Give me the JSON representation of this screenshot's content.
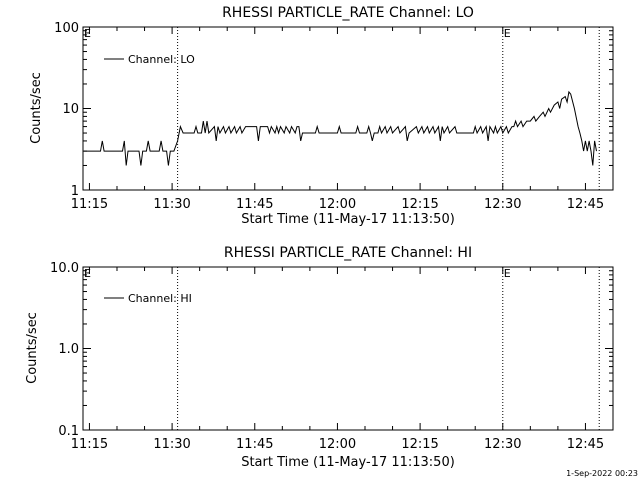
{
  "figure": {
    "footer_timestamp": "1-Sep-2022 00:23"
  },
  "chart_data": [
    {
      "type": "line",
      "title": "RHESSI PARTICLE_RATE Channel: LO",
      "xlabel": "Start Time (11-May-17 11:13:50)",
      "ylabel": "Counts/sec",
      "y_scale": "log",
      "xlim": [
        "11:13:50",
        "12:50:00"
      ],
      "ylim": [
        1,
        100
      ],
      "x_ticks": [
        "11:15",
        "11:30",
        "11:45",
        "12:00",
        "12:15",
        "12:30",
        "12:45"
      ],
      "y_ticks": [
        "1",
        "10",
        "100"
      ],
      "legend": "top-left",
      "vertical_markers": [
        {
          "time": "11:31:00",
          "label": ""
        },
        {
          "time": "12:30:00",
          "label": "E"
        },
        {
          "time": "12:47:30",
          "label": ""
        }
      ],
      "corner_label": "E",
      "series": [
        {
          "name": "Channel: LO",
          "color": "#000000",
          "points": [
            [
              "11:14:00",
              3.0
            ],
            [
              "11:17:00",
              3.0
            ],
            [
              "11:17:20",
              4.0
            ],
            [
              "11:17:40",
              3.0
            ],
            [
              "11:21:00",
              3.0
            ],
            [
              "11:21:20",
              4.0
            ],
            [
              "11:21:40",
              2.0
            ],
            [
              "11:22:00",
              3.0
            ],
            [
              "11:24:00",
              3.0
            ],
            [
              "11:24:20",
              2.0
            ],
            [
              "11:24:40",
              3.0
            ],
            [
              "11:25:20",
              3.0
            ],
            [
              "11:25:40",
              4.0
            ],
            [
              "11:26:00",
              3.0
            ],
            [
              "11:27:40",
              3.0
            ],
            [
              "11:28:00",
              4.0
            ],
            [
              "11:28:20",
              3.0
            ],
            [
              "11:29:00",
              3.0
            ],
            [
              "11:29:20",
              2.0
            ],
            [
              "11:29:40",
              3.0
            ],
            [
              "11:30:20",
              3.0
            ],
            [
              "11:31:00",
              4.0
            ],
            [
              "11:31:30",
              6.0
            ],
            [
              "11:32:00",
              5.0
            ],
            [
              "11:34:00",
              5.0
            ],
            [
              "11:34:20",
              6.0
            ],
            [
              "11:34:40",
              5.0
            ],
            [
              "11:35:20",
              5.0
            ],
            [
              "11:35:40",
              7.0
            ],
            [
              "11:36:00",
              5.0
            ],
            [
              "11:36:20",
              7.0
            ],
            [
              "11:36:40",
              5.0
            ],
            [
              "11:37:40",
              6.0
            ],
            [
              "11:38:00",
              4.0
            ],
            [
              "11:38:20",
              6.0
            ],
            [
              "11:38:40",
              5.0
            ],
            [
              "11:39:20",
              6.0
            ],
            [
              "11:39:40",
              5.0
            ],
            [
              "11:40:20",
              6.0
            ],
            [
              "11:40:40",
              5.0
            ],
            [
              "11:41:20",
              6.0
            ],
            [
              "11:41:40",
              5.0
            ],
            [
              "11:42:20",
              6.0
            ],
            [
              "11:42:40",
              5.0
            ],
            [
              "11:43:20",
              6.0
            ],
            [
              "11:43:40",
              6.0
            ],
            [
              "11:45:20",
              6.0
            ],
            [
              "11:45:40",
              4.0
            ],
            [
              "11:46:00",
              6.0
            ],
            [
              "11:47:20",
              6.0
            ],
            [
              "11:47:40",
              5.0
            ],
            [
              "11:48:00",
              6.0
            ],
            [
              "11:48:40",
              5.0
            ],
            [
              "11:49:00",
              6.0
            ],
            [
              "11:49:20",
              5.0
            ],
            [
              "11:49:40",
              6.0
            ],
            [
              "11:50:20",
              5.0
            ],
            [
              "11:50:40",
              6.0
            ],
            [
              "11:51:20",
              5.0
            ],
            [
              "11:51:40",
              6.0
            ],
            [
              "11:52:20",
              5.0
            ],
            [
              "11:52:40",
              6.0
            ],
            [
              "11:53:00",
              6.0
            ],
            [
              "11:53:20",
              4.0
            ],
            [
              "11:53:40",
              5.0
            ],
            [
              "11:56:00",
              5.0
            ],
            [
              "11:56:20",
              6.0
            ],
            [
              "11:56:40",
              5.0
            ],
            [
              "12:00:00",
              5.0
            ],
            [
              "12:00:20",
              6.0
            ],
            [
              "12:00:40",
              5.0
            ],
            [
              "12:03:20",
              5.0
            ],
            [
              "12:03:40",
              6.0
            ],
            [
              "12:04:00",
              5.0
            ],
            [
              "12:05:20",
              5.0
            ],
            [
              "12:05:40",
              6.0
            ],
            [
              "12:06:00",
              5.0
            ],
            [
              "12:06:20",
              4.0
            ],
            [
              "12:06:40",
              5.0
            ],
            [
              "12:07:20",
              5.0
            ],
            [
              "12:07:40",
              6.0
            ],
            [
              "12:08:00",
              5.0
            ],
            [
              "12:08:40",
              6.0
            ],
            [
              "12:09:00",
              5.0
            ],
            [
              "12:09:40",
              6.0
            ],
            [
              "12:10:00",
              5.0
            ],
            [
              "12:11:00",
              6.0
            ],
            [
              "12:11:20",
              5.0
            ],
            [
              "12:12:20",
              6.0
            ],
            [
              "12:12:40",
              4.0
            ],
            [
              "12:13:00",
              5.0
            ],
            [
              "12:14:20",
              6.0
            ],
            [
              "12:14:40",
              5.0
            ],
            [
              "12:15:20",
              6.0
            ],
            [
              "12:15:40",
              5.0
            ],
            [
              "12:16:20",
              6.0
            ],
            [
              "12:16:40",
              5.0
            ],
            [
              "12:17:20",
              6.0
            ],
            [
              "12:17:40",
              5.0
            ],
            [
              "12:18:20",
              6.0
            ],
            [
              "12:18:40",
              4.0
            ],
            [
              "12:19:00",
              6.0
            ],
            [
              "12:19:20",
              5.0
            ],
            [
              "12:20:00",
              6.0
            ],
            [
              "12:20:20",
              5.0
            ],
            [
              "12:21:20",
              6.0
            ],
            [
              "12:21:40",
              5.0
            ],
            [
              "12:24:40",
              5.0
            ],
            [
              "12:25:00",
              6.0
            ],
            [
              "12:25:20",
              5.0
            ],
            [
              "12:26:00",
              6.0
            ],
            [
              "12:26:20",
              5.0
            ],
            [
              "12:27:00",
              6.0
            ],
            [
              "12:27:20",
              4.0
            ],
            [
              "12:27:40",
              6.0
            ],
            [
              "12:28:20",
              5.0
            ],
            [
              "12:28:40",
              6.0
            ],
            [
              "12:29:00",
              5.0
            ],
            [
              "12:29:40",
              6.0
            ],
            [
              "12:30:00",
              5.0
            ],
            [
              "12:30:40",
              6.0
            ],
            [
              "12:31:00",
              5.0
            ],
            [
              "12:31:40",
              6.0
            ],
            [
              "12:32:00",
              6.0
            ],
            [
              "12:32:20",
              7.0
            ],
            [
              "12:32:40",
              6.0
            ],
            [
              "12:33:20",
              7.0
            ],
            [
              "12:33:40",
              6.0
            ],
            [
              "12:34:20",
              7.0
            ],
            [
              "12:35:00",
              7.0
            ],
            [
              "12:35:40",
              8.0
            ],
            [
              "12:36:00",
              7.0
            ],
            [
              "12:36:40",
              8.0
            ],
            [
              "12:37:20",
              9.0
            ],
            [
              "12:37:40",
              8.0
            ],
            [
              "12:38:20",
              10.0
            ],
            [
              "12:38:40",
              9.0
            ],
            [
              "12:39:20",
              11.0
            ],
            [
              "12:40:00",
              12.0
            ],
            [
              "12:40:20",
              10.0
            ],
            [
              "12:40:40",
              13.0
            ],
            [
              "12:41:20",
              14.0
            ],
            [
              "12:41:40",
              12.0
            ],
            [
              "12:42:00",
              16.0
            ],
            [
              "12:42:20",
              15.0
            ],
            [
              "12:43:00",
              10.0
            ],
            [
              "12:43:40",
              6.0
            ],
            [
              "12:44:00",
              5.0
            ],
            [
              "12:44:20",
              4.0
            ],
            [
              "12:44:40",
              3.0
            ],
            [
              "12:45:00",
              4.0
            ],
            [
              "12:45:20",
              3.0
            ],
            [
              "12:45:40",
              4.0
            ],
            [
              "12:46:00",
              3.0
            ],
            [
              "12:46:20",
              2.0
            ],
            [
              "12:46:40",
              4.0
            ],
            [
              "12:47:00",
              3.0
            ]
          ]
        }
      ]
    },
    {
      "type": "line",
      "title": "RHESSI PARTICLE_RATE Channel: HI",
      "xlabel": "Start Time (11-May-17 11:13:50)",
      "ylabel": "Counts/sec",
      "y_scale": "log",
      "xlim": [
        "11:13:50",
        "12:50:00"
      ],
      "ylim": [
        0.1,
        10
      ],
      "x_ticks": [
        "11:15",
        "11:30",
        "11:45",
        "12:00",
        "12:15",
        "12:30",
        "12:45"
      ],
      "y_ticks": [
        "0.1",
        "1.0",
        "10.0"
      ],
      "legend": "top-left",
      "vertical_markers": [
        {
          "time": "11:31:00",
          "label": ""
        },
        {
          "time": "12:30:00",
          "label": "E"
        },
        {
          "time": "12:47:30",
          "label": ""
        }
      ],
      "corner_label": "E",
      "series": [
        {
          "name": "Channel: HI",
          "color": "#000000",
          "points": []
        }
      ]
    }
  ]
}
